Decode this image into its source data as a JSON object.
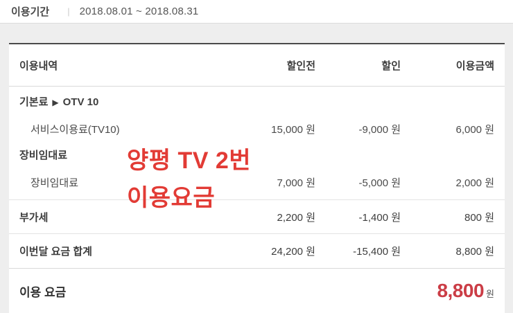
{
  "period": {
    "label": "이용기간",
    "separator": "|",
    "value": "2018.08.01 ~ 2018.08.31"
  },
  "icons": {
    "arrow_right": "▶"
  },
  "table": {
    "header": {
      "item": "이용내역",
      "pre": "할인전",
      "disc": "할인",
      "amt": "이용금액"
    },
    "group_basic": {
      "label": "기본료",
      "plan": "OTV 10"
    },
    "row_service": {
      "label": "서비스이용료(TV10)",
      "pre": "15,000 원",
      "disc": "-9,000 원",
      "amt": "6,000 원"
    },
    "group_equipment": {
      "label": "장비임대료"
    },
    "row_equipment": {
      "label": "장비임대료",
      "pre": "7,000 원",
      "disc": "-5,000 원",
      "amt": "2,000 원"
    },
    "row_vat": {
      "label": "부가세",
      "pre": "2,200 원",
      "disc": "-1,400 원",
      "amt": "800 원"
    },
    "row_month_total": {
      "label": "이번달 요금 합계",
      "pre": "24,200 원",
      "disc": "-15,400 원",
      "amt": "8,800 원"
    },
    "total": {
      "label": "이용 요금",
      "amount": "8,800",
      "unit": "원"
    }
  },
  "annotation": {
    "line1": "양평 TV 2번",
    "line2": "이용요금"
  },
  "colors": {
    "page_background": "#eeeeee",
    "card_top_border": "#4a4a4a",
    "total_red": "#cb3d46",
    "annotation_red": "#e23b35"
  }
}
